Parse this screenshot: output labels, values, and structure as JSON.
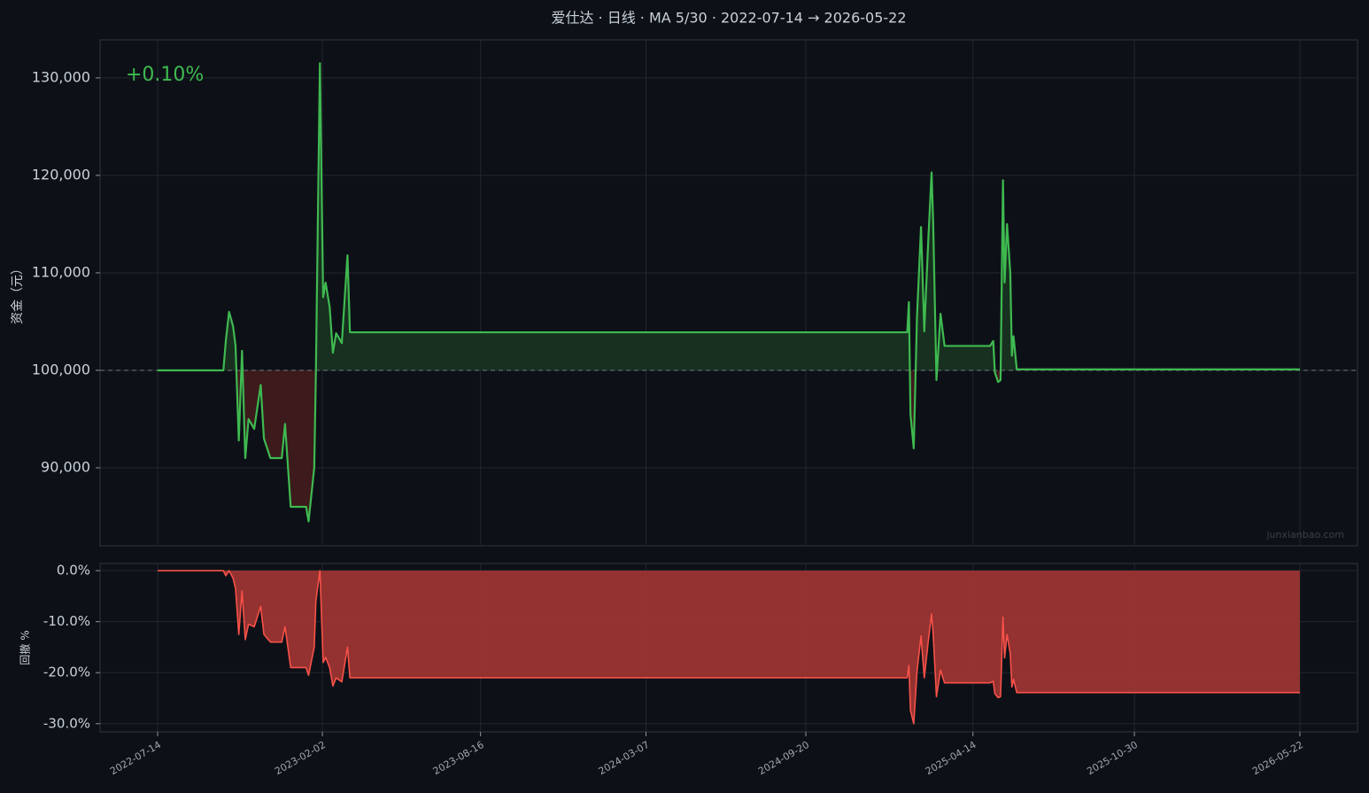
{
  "chart_data": [
    {
      "type": "line",
      "title": "爱仕达 · 日线 · MA 5/30 · 2022-07-14 → 2026-05-22",
      "y_label": "资金（元）",
      "annotation": "+0.10%",
      "watermark": "junxianbao.com",
      "x": [
        "2022-07-14",
        "2022-10-03",
        "2022-10-06",
        "2022-10-10",
        "2022-10-15",
        "2022-10-18",
        "2022-10-22",
        "2022-10-26",
        "2022-10-30",
        "2022-11-03",
        "2022-11-10",
        "2022-11-18",
        "2022-11-22",
        "2022-11-30",
        "2022-12-14",
        "2022-12-18",
        "2022-12-25",
        "2023-01-13",
        "2023-01-16",
        "2023-01-23",
        "2023-01-25",
        "2023-01-30",
        "2023-02-03",
        "2023-02-06",
        "2023-02-11",
        "2023-02-15",
        "2023-02-19",
        "2023-02-26",
        "2023-03-05",
        "2023-03-08",
        "2025-01-23",
        "2025-01-25",
        "2025-01-27",
        "2025-01-31",
        "2025-02-04",
        "2025-02-09",
        "2025-02-13",
        "2025-02-18",
        "2025-02-22",
        "2025-02-24",
        "2025-02-28",
        "2025-03-05",
        "2025-03-10",
        "2025-05-05",
        "2025-05-09",
        "2025-05-11",
        "2025-05-15",
        "2025-05-18",
        "2025-05-21",
        "2025-05-23",
        "2025-05-26",
        "2025-05-30",
        "2025-06-01",
        "2025-06-03",
        "2025-06-07",
        "2026-05-22"
      ],
      "series": [
        {
          "name": "资金",
          "color": "#3fb950",
          "values": [
            100000,
            100000,
            103000,
            106000,
            104500,
            102500,
            92800,
            102000,
            91000,
            95000,
            94000,
            98500,
            93000,
            91000,
            91000,
            94500,
            86000,
            86000,
            84500,
            90000,
            99500,
            131500,
            107500,
            109000,
            106500,
            101800,
            103800,
            102800,
            111800,
            103900,
            103900,
            107000,
            95500,
            92000,
            105500,
            114700,
            104000,
            113500,
            120300,
            115000,
            99000,
            105800,
            102500,
            102500,
            103000,
            99800,
            98800,
            99000,
            119500,
            109000,
            115000,
            110000,
            101500,
            103500,
            100100,
            100100
          ]
        }
      ],
      "baseline": 100000,
      "fill_above": "#17301f",
      "fill_below": "#3d1a1c",
      "xlim": [
        "2022-05-04",
        "2026-08-01"
      ],
      "ylim": [
        82000,
        133900
      ],
      "yticks": [
        {
          "value": 90000,
          "label": "90,000"
        },
        {
          "value": 100000,
          "label": "100,000"
        },
        {
          "value": 110000,
          "label": "110,000"
        },
        {
          "value": 120000,
          "label": "120,000"
        },
        {
          "value": 130000,
          "label": "130,000"
        }
      ],
      "grid": true
    },
    {
      "type": "area",
      "y_label": "回撤 %",
      "series": [
        {
          "name": "回撤",
          "color": "#f85149",
          "fill": "#9b3532",
          "values": [
            0,
            0,
            -1,
            0,
            -1.5,
            -3.5,
            -12.5,
            -4,
            -13.5,
            -10.5,
            -11,
            -7,
            -12.5,
            -14,
            -14,
            -11,
            -19,
            -19,
            -20.5,
            -15,
            -6,
            0,
            -18,
            -17,
            -19,
            -22.6,
            -21,
            -21.8,
            -15,
            -21,
            -21,
            -18.6,
            -27.4,
            -30,
            -19.8,
            -12.8,
            -21,
            -13.7,
            -8.5,
            -12.5,
            -24.7,
            -19.5,
            -22,
            -22,
            -21.7,
            -24.1,
            -24.9,
            -24.7,
            -9.1,
            -17.1,
            -12.5,
            -16.3,
            -22.8,
            -21.3,
            -23.9,
            -23.9
          ]
        }
      ],
      "xlim": [
        "2022-05-04",
        "2026-08-01"
      ],
      "xticks": [
        "2022-07-14",
        "2023-02-02",
        "2023-08-16",
        "2024-03-07",
        "2024-09-20",
        "2025-04-14",
        "2025-10-30",
        "2026-05-22"
      ],
      "ylim": [
        -31.6,
        1.4
      ],
      "yticks": [
        {
          "value": -30,
          "label": "-30.0%"
        },
        {
          "value": -20,
          "label": "-20.0%"
        },
        {
          "value": -10,
          "label": "-10.0%"
        },
        {
          "value": 0,
          "label": "0.0%"
        }
      ],
      "grid": true
    }
  ]
}
